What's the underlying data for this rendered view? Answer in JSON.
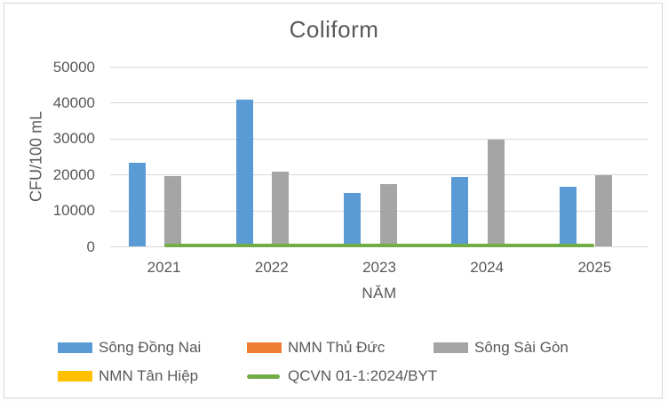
{
  "chart_data": {
    "type": "bar",
    "title": "Coliform",
    "xlabel": "NĂM",
    "ylabel": "CFU/100 mL",
    "categories": [
      "2021",
      "2022",
      "2023",
      "2024",
      "2025"
    ],
    "series": [
      {
        "name": "Sông Đồng Nai",
        "type": "bar",
        "color": "#5b9bd5",
        "values": [
          23500,
          41000,
          15000,
          19500,
          16700
        ]
      },
      {
        "name": "NMN Thủ Đức",
        "type": "bar",
        "color": "#ed7d31",
        "values": [
          0,
          0,
          0,
          0,
          0
        ]
      },
      {
        "name": "Sông Sài Gòn",
        "type": "bar",
        "color": "#a5a5a5",
        "values": [
          19800,
          21000,
          17500,
          29800,
          20000
        ]
      },
      {
        "name": "NMN Tân Hiệp",
        "type": "bar",
        "color": "#ffc000",
        "values": [
          0,
          0,
          0,
          0,
          0
        ]
      },
      {
        "name": "QCVN 01-1:2024/BYT",
        "type": "line",
        "color": "#70ad47",
        "values": [
          0,
          0,
          0,
          0,
          0
        ]
      }
    ],
    "ylim": [
      0,
      50000
    ],
    "yticks": [
      0,
      10000,
      20000,
      30000,
      40000,
      50000
    ],
    "grid": "horizontal-only",
    "legend_position": "bottom",
    "text_color": "#595959",
    "gridline_color": "#d9d9d9"
  }
}
